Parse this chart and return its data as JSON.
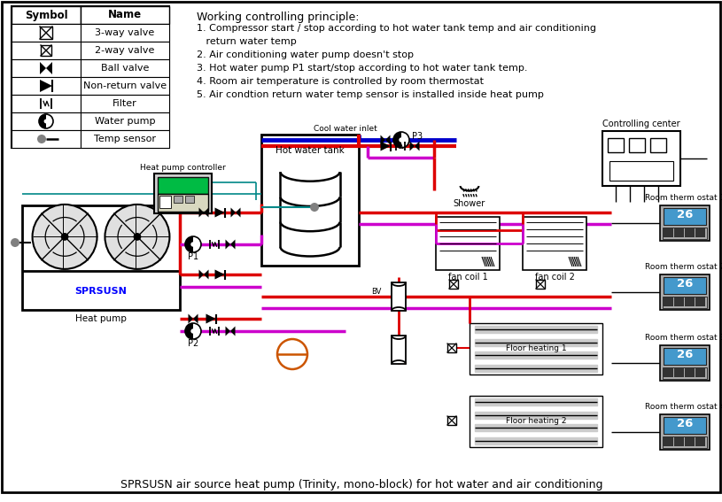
{
  "bg": "#ffffff",
  "principle_title": "Working controlling principle:",
  "principle_lines": [
    "1. Compressor start / stop according to hot water tank temp and air conditioning",
    "   return water temp",
    "2. Air conditioning water pump doesn't stop",
    "3. Hot water pump P1 start/stop according to hot water tank temp.",
    "4. Room air temperature is controlled by room thermostat",
    "5. Air condtion return water temp sensor is installed inside heat pump"
  ],
  "bottom_text": "SPRSUSN air source heat pump (Trinity, mono-block) for hot water and air conditioning",
  "red": "#dd0000",
  "blue": "#0000cc",
  "magenta": "#cc00cc",
  "teal": "#008888",
  "orange": "#cc5500",
  "black": "#000000",
  "blue_bright": "#0000ff"
}
